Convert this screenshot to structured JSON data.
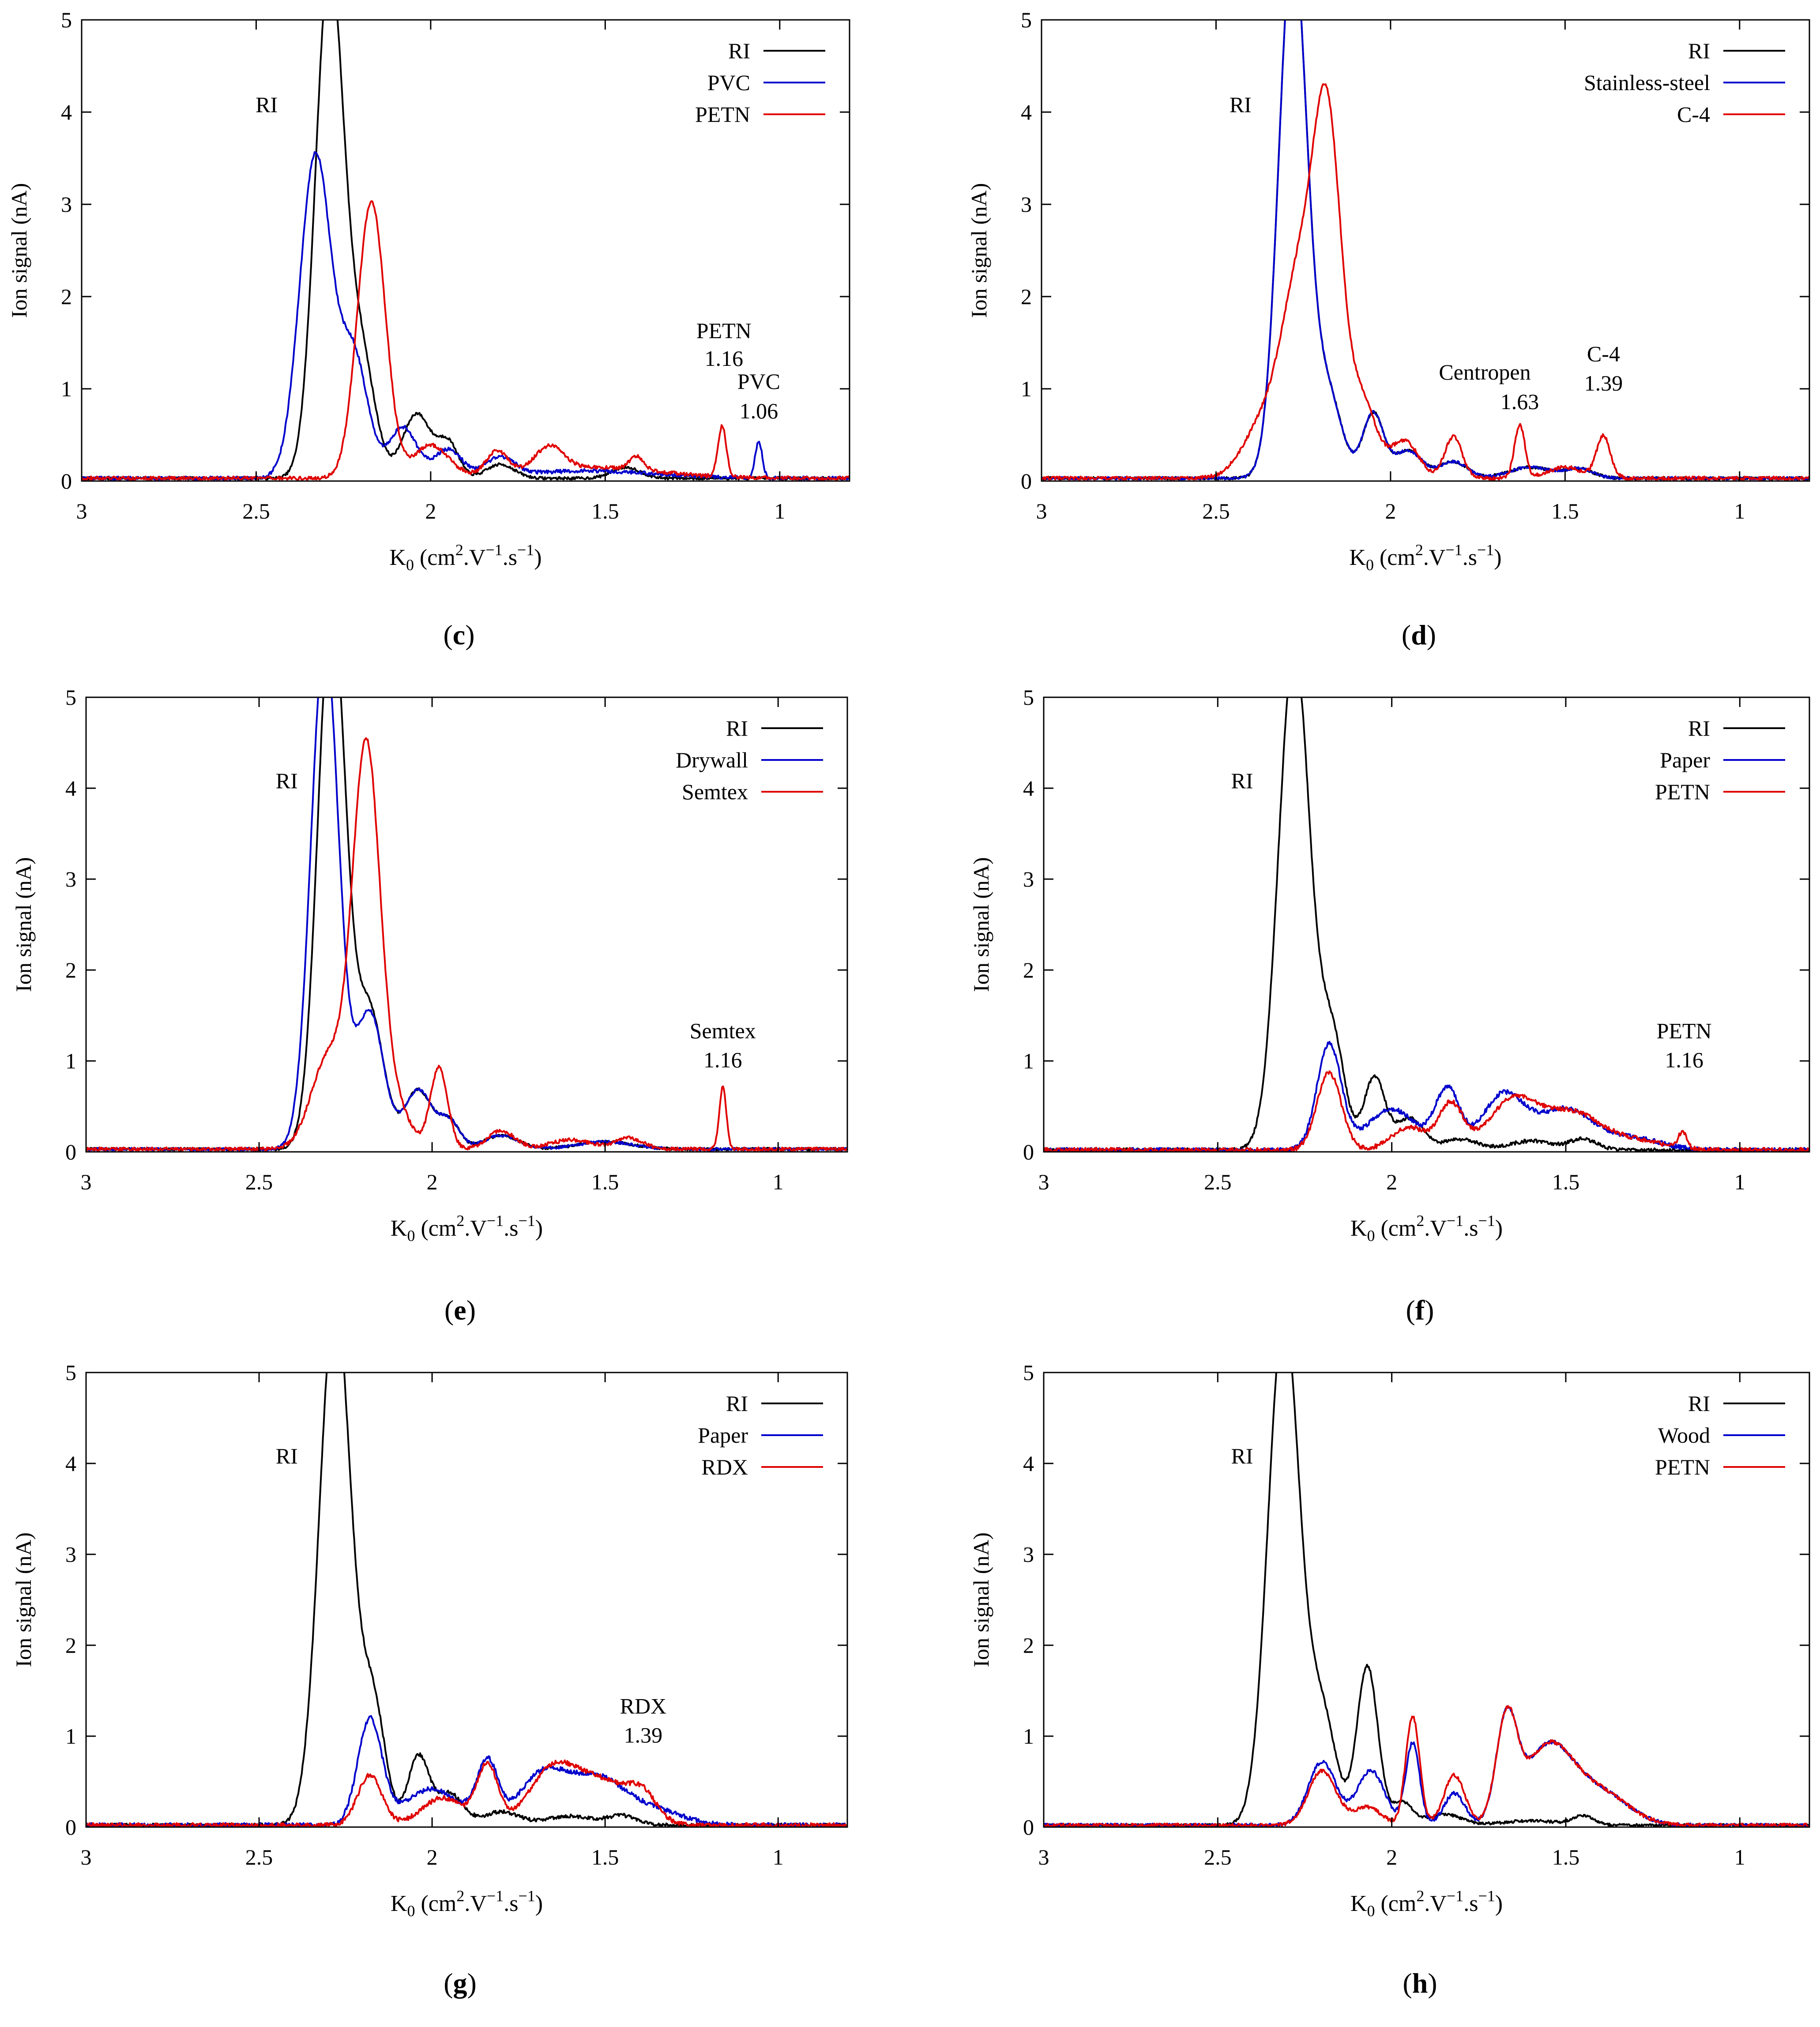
{
  "figure": {
    "axis_labels": {
      "ylabel": "Ion signal (nA)",
      "xlabel_main": "K",
      "xlabel_sub": "0",
      "xlabel_units": " (cm",
      "xlabel_sup1": "2",
      "xlabel_mid": ".V",
      "xlabel_sup2": "−1",
      "xlabel_mid2": ".s",
      "xlabel_sup3": "−1",
      "xlabel_close": ")"
    },
    "colors": {
      "RI": "#000000",
      "background_material": "#0000cc",
      "explosive": "#e00000"
    }
  },
  "chart_data": [
    {
      "panel": "(c)",
      "type": "line",
      "xlim": [
        3,
        0.8
      ],
      "ylim": [
        0,
        5
      ],
      "xticks": [
        "3",
        "2.5",
        "2",
        "1.5",
        "1"
      ],
      "yticks": [
        "0",
        "1",
        "2",
        "3",
        "4",
        "5"
      ],
      "legend": [
        "RI",
        "PVC",
        "PETN"
      ],
      "annotations": [
        {
          "text": "RI",
          "x": 2.47,
          "y": 4.0
        },
        {
          "text": "PETN",
          "x": 1.16,
          "y": 1.55
        },
        {
          "text": "1.16",
          "x": 1.16,
          "y": 1.25
        },
        {
          "text": "PVC",
          "x": 1.06,
          "y": 1.0
        },
        {
          "text": "1.06",
          "x": 1.06,
          "y": 0.68
        }
      ],
      "series": [
        {
          "name": "RI",
          "peaks": [
            [
              2.29,
              5.5,
              0.04
            ],
            [
              2.2,
              1.3,
              0.04
            ],
            [
              2.04,
              0.7,
              0.04
            ],
            [
              1.95,
              0.38,
              0.03
            ],
            [
              1.8,
              0.15,
              0.04
            ],
            [
              1.44,
              0.12,
              0.04
            ]
          ],
          "baseline": 0.03,
          "noise": 0.015
        },
        {
          "name": "PVC",
          "peaks": [
            [
              2.33,
              3.5,
              0.045
            ],
            [
              2.22,
              1.3,
              0.04
            ],
            [
              2.08,
              0.55,
              0.04
            ],
            [
              1.95,
              0.3,
              0.04
            ],
            [
              1.8,
              0.2,
              0.04
            ],
            [
              1.55,
              0.08,
              0.2
            ],
            [
              1.06,
              0.4,
              0.01
            ]
          ],
          "baseline": 0.03,
          "noise": 0.02
        },
        {
          "name": "PETN",
          "peaks": [
            [
              2.17,
              3.0,
              0.04
            ],
            [
              2.0,
              0.35,
              0.05
            ],
            [
              1.81,
              0.25,
              0.03
            ],
            [
              1.66,
              0.25,
              0.04
            ],
            [
              1.55,
              0.12,
              0.2
            ],
            [
              1.41,
              0.15,
              0.02
            ],
            [
              1.165,
              0.55,
              0.012
            ]
          ],
          "baseline": 0.03,
          "noise": 0.02
        }
      ]
    },
    {
      "panel": "(d)",
      "type": "line",
      "xlim": [
        3,
        0.8
      ],
      "ylim": [
        0,
        5
      ],
      "xticks": [
        "3",
        "2.5",
        "2",
        "1.5",
        "1"
      ],
      "yticks": [
        "0",
        "1",
        "2",
        "3",
        "4",
        "5"
      ],
      "legend": [
        "RI",
        "Stainless-steel",
        "C-4"
      ],
      "annotations": [
        {
          "text": "RI",
          "x": 2.43,
          "y": 4.0
        },
        {
          "text": "Centropen",
          "x": 1.73,
          "y": 1.1
        },
        {
          "text": "1.63",
          "x": 1.63,
          "y": 0.78
        },
        {
          "text": "C-4",
          "x": 1.39,
          "y": 1.3
        },
        {
          "text": "1.39",
          "x": 1.39,
          "y": 0.98
        }
      ],
      "series": [
        {
          "name": "RI",
          "peaks": [
            [
              2.28,
              5.8,
              0.04
            ],
            [
              2.18,
              0.9,
              0.04
            ],
            [
              2.05,
              0.7,
              0.03
            ],
            [
              1.95,
              0.3,
              0.04
            ],
            [
              1.82,
              0.18,
              0.04
            ],
            [
              1.6,
              0.12,
              0.06
            ],
            [
              1.46,
              0.1,
              0.04
            ]
          ],
          "baseline": 0.03,
          "noise": 0.015
        },
        {
          "name": "Stainless-steel",
          "peaks": [
            [
              2.28,
              5.8,
              0.04
            ],
            [
              2.18,
              0.9,
              0.04
            ],
            [
              2.05,
              0.7,
              0.03
            ],
            [
              1.95,
              0.3,
              0.04
            ],
            [
              1.82,
              0.18,
              0.04
            ],
            [
              1.6,
              0.12,
              0.06
            ],
            [
              1.46,
              0.1,
              0.04
            ]
          ],
          "baseline": 0.03,
          "noise": 0.015
        },
        {
          "name": "C-4",
          "peaks": [
            [
              2.36,
              0.6,
              0.06
            ],
            [
              2.26,
              2.0,
              0.05
            ],
            [
              2.18,
              3.6,
              0.04
            ],
            [
              2.08,
              0.8,
              0.04
            ],
            [
              1.96,
              0.4,
              0.04
            ],
            [
              1.82,
              0.45,
              0.025
            ],
            [
              1.63,
              0.58,
              0.015
            ],
            [
              1.5,
              0.12,
              0.05
            ],
            [
              1.39,
              0.45,
              0.02
            ]
          ],
          "baseline": 0.03,
          "noise": 0.02
        }
      ]
    },
    {
      "panel": "(e)",
      "type": "line",
      "xlim": [
        3,
        0.8
      ],
      "ylim": [
        0,
        5
      ],
      "xticks": [
        "3",
        "2.5",
        "2",
        "1.5",
        "1"
      ],
      "yticks": [
        "0",
        "1",
        "2",
        "3",
        "4",
        "5"
      ],
      "legend": [
        "RI",
        "Drywall",
        "Semtex"
      ],
      "annotations": [
        {
          "text": "RI",
          "x": 2.42,
          "y": 4.0
        },
        {
          "text": "Semtex",
          "x": 1.16,
          "y": 1.25
        },
        {
          "text": "1.16",
          "x": 1.16,
          "y": 0.93
        }
      ],
      "series": [
        {
          "name": "RI",
          "peaks": [
            [
              2.29,
              6.0,
              0.04
            ],
            [
              2.18,
              1.5,
              0.04
            ],
            [
              2.04,
              0.65,
              0.04
            ],
            [
              1.95,
              0.3,
              0.03
            ],
            [
              1.8,
              0.15,
              0.05
            ],
            [
              1.5,
              0.08,
              0.08
            ]
          ],
          "baseline": 0.03,
          "noise": 0.015
        },
        {
          "name": "Drywall",
          "peaks": [
            [
              2.31,
              5.6,
              0.04
            ],
            [
              2.18,
              1.5,
              0.04
            ],
            [
              2.04,
              0.65,
              0.04
            ],
            [
              1.95,
              0.3,
              0.03
            ],
            [
              1.8,
              0.15,
              0.05
            ],
            [
              1.5,
              0.08,
              0.08
            ]
          ],
          "baseline": 0.03,
          "noise": 0.015
        },
        {
          "name": "Semtex",
          "peaks": [
            [
              2.3,
              1.0,
              0.05
            ],
            [
              2.19,
              4.4,
              0.04
            ],
            [
              2.1,
              0.4,
              0.04
            ],
            [
              1.98,
              0.9,
              0.025
            ],
            [
              1.8,
              0.2,
              0.04
            ],
            [
              1.6,
              0.1,
              0.06
            ],
            [
              1.43,
              0.12,
              0.04
            ],
            [
              1.16,
              0.68,
              0.01
            ]
          ],
          "baseline": 0.03,
          "noise": 0.02
        }
      ]
    },
    {
      "panel": "(f)",
      "type": "line",
      "xlim": [
        3,
        0.8
      ],
      "ylim": [
        0,
        5
      ],
      "xticks": [
        "3",
        "2.5",
        "2",
        "1.5",
        "1"
      ],
      "yticks": [
        "0",
        "1",
        "2",
        "3",
        "4",
        "5"
      ],
      "legend": [
        "RI",
        "Paper",
        "PETN"
      ],
      "annotations": [
        {
          "text": "RI",
          "x": 2.43,
          "y": 4.0
        },
        {
          "text": "PETN",
          "x": 1.16,
          "y": 1.25
        },
        {
          "text": "1.16",
          "x": 1.16,
          "y": 0.93
        }
      ],
      "series": [
        {
          "name": "RI",
          "peaks": [
            [
              2.28,
              5.5,
              0.045
            ],
            [
              2.17,
              1.2,
              0.035
            ],
            [
              2.05,
              0.8,
              0.03
            ],
            [
              1.95,
              0.35,
              0.04
            ],
            [
              1.8,
              0.12,
              0.05
            ],
            [
              1.6,
              0.1,
              0.06
            ],
            [
              1.45,
              0.12,
              0.04
            ]
          ],
          "baseline": 0.02,
          "noise": 0.02
        },
        {
          "name": "Paper",
          "peaks": [
            [
              2.18,
              1.15,
              0.035
            ],
            [
              2.0,
              0.45,
              0.07
            ],
            [
              1.84,
              0.65,
              0.035
            ],
            [
              1.68,
              0.6,
              0.06
            ],
            [
              1.5,
              0.45,
              0.08
            ],
            [
              1.3,
              0.12,
              0.08
            ]
          ],
          "baseline": 0.02,
          "noise": 0.025
        },
        {
          "name": "PETN",
          "peaks": [
            [
              2.18,
              0.85,
              0.035
            ],
            [
              1.95,
              0.25,
              0.05
            ],
            [
              1.83,
              0.5,
              0.035
            ],
            [
              1.65,
              0.55,
              0.07
            ],
            [
              1.48,
              0.4,
              0.08
            ],
            [
              1.3,
              0.1,
              0.08
            ],
            [
              1.165,
              0.18,
              0.012
            ]
          ],
          "baseline": 0.02,
          "noise": 0.025
        }
      ]
    },
    {
      "panel": "(g)",
      "type": "line",
      "xlim": [
        3,
        0.8
      ],
      "ylim": [
        0,
        5
      ],
      "xticks": [
        "3",
        "2.5",
        "2",
        "1.5",
        "1"
      ],
      "yticks": [
        "0",
        "1",
        "2",
        "3",
        "4",
        "5"
      ],
      "legend": [
        "RI",
        "Paper",
        "RDX"
      ],
      "annotations": [
        {
          "text": "RI",
          "x": 2.42,
          "y": 4.0
        },
        {
          "text": "RDX",
          "x": 1.39,
          "y": 1.25
        },
        {
          "text": "1.39",
          "x": 1.39,
          "y": 0.93
        }
      ],
      "series": [
        {
          "name": "RI",
          "peaks": [
            [
              2.28,
              5.8,
              0.045
            ],
            [
              2.17,
              1.3,
              0.035
            ],
            [
              2.04,
              0.75,
              0.03
            ],
            [
              1.95,
              0.35,
              0.04
            ],
            [
              1.8,
              0.15,
              0.05
            ],
            [
              1.6,
              0.1,
              0.07
            ],
            [
              1.45,
              0.1,
              0.04
            ]
          ],
          "baseline": 0.02,
          "noise": 0.02
        },
        {
          "name": "Paper",
          "peaks": [
            [
              2.18,
              1.15,
              0.035
            ],
            [
              2.0,
              0.4,
              0.08
            ],
            [
              1.84,
              0.65,
              0.03
            ],
            [
              1.68,
              0.55,
              0.07
            ],
            [
              1.52,
              0.5,
              0.08
            ],
            [
              1.35,
              0.15,
              0.08
            ]
          ],
          "baseline": 0.02,
          "noise": 0.025
        },
        {
          "name": "RDX",
          "peaks": [
            [
              2.18,
              0.55,
              0.035
            ],
            [
              1.97,
              0.3,
              0.06
            ],
            [
              1.84,
              0.65,
              0.03
            ],
            [
              1.65,
              0.6,
              0.07
            ],
            [
              1.5,
              0.45,
              0.08
            ],
            [
              1.39,
              0.25,
              0.04
            ]
          ],
          "baseline": 0.02,
          "noise": 0.025
        }
      ]
    },
    {
      "panel": "(h)",
      "type": "line",
      "xlim": [
        3,
        0.8
      ],
      "ylim": [
        0,
        5
      ],
      "xticks": [
        "3",
        "2.5",
        "2",
        "1.5",
        "1"
      ],
      "yticks": [
        "0",
        "1",
        "2",
        "3",
        "4",
        "5"
      ],
      "legend": [
        "RI",
        "Wood",
        "PETN"
      ],
      "annotations": [
        {
          "text": "RI",
          "x": 2.43,
          "y": 4.0
        }
      ],
      "series": [
        {
          "name": "RI",
          "peaks": [
            [
              2.31,
              5.6,
              0.045
            ],
            [
              2.2,
              1.2,
              0.04
            ],
            [
              2.07,
              1.75,
              0.03
            ],
            [
              1.97,
              0.25,
              0.03
            ],
            [
              1.85,
              0.12,
              0.05
            ],
            [
              1.6,
              0.05,
              0.08
            ],
            [
              1.45,
              0.1,
              0.03
            ]
          ],
          "baseline": 0.02,
          "noise": 0.015
        },
        {
          "name": "Wood",
          "peaks": [
            [
              2.2,
              0.7,
              0.04
            ],
            [
              2.06,
              0.6,
              0.04
            ],
            [
              1.94,
              0.9,
              0.02
            ],
            [
              1.82,
              0.35,
              0.03
            ],
            [
              1.67,
              1.1,
              0.03
            ],
            [
              1.55,
              0.85,
              0.07
            ],
            [
              1.4,
              0.35,
              0.08
            ]
          ],
          "baseline": 0.02,
          "noise": 0.02
        },
        {
          "name": "PETN",
          "peaks": [
            [
              2.2,
              0.6,
              0.04
            ],
            [
              2.07,
              0.2,
              0.04
            ],
            [
              1.94,
              1.2,
              0.02
            ],
            [
              1.82,
              0.55,
              0.03
            ],
            [
              1.67,
              1.1,
              0.03
            ],
            [
              1.55,
              0.85,
              0.07
            ],
            [
              1.4,
              0.35,
              0.08
            ]
          ],
          "baseline": 0.02,
          "noise": 0.02
        }
      ]
    }
  ]
}
